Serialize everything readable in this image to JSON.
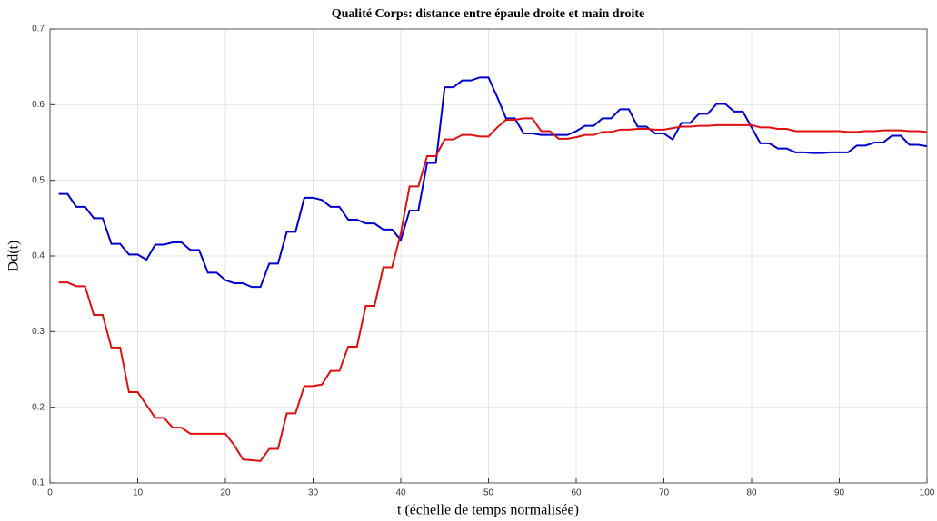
{
  "chart_data": {
    "type": "line",
    "title": "Qualité Corps: distance entre épaule droite et main droite",
    "xlabel": "t (échelle de temps normalisée)",
    "ylabel": "Dd(t)",
    "x": [
      1,
      2,
      3,
      4,
      5,
      6,
      7,
      8,
      9,
      10,
      11,
      12,
      13,
      14,
      15,
      16,
      17,
      18,
      19,
      20,
      21,
      22,
      23,
      24,
      25,
      26,
      27,
      28,
      29,
      30,
      31,
      32,
      33,
      34,
      35,
      36,
      37,
      38,
      39,
      40,
      41,
      42,
      43,
      44,
      45,
      46,
      47,
      48,
      49,
      50,
      51,
      52,
      53,
      54,
      55,
      56,
      57,
      58,
      59,
      60,
      61,
      62,
      63,
      64,
      65,
      66,
      67,
      68,
      69,
      70,
      71,
      72,
      73,
      74,
      75,
      76,
      77,
      78,
      79,
      80,
      81,
      82,
      83,
      84,
      85,
      86,
      87,
      88,
      89,
      90,
      91,
      92,
      93,
      94,
      95,
      96,
      97,
      98,
      99,
      100
    ],
    "series": [
      {
        "color": "#0000d0",
        "values": [
          0.482,
          0.482,
          0.465,
          0.465,
          0.45,
          0.45,
          0.416,
          0.416,
          0.402,
          0.402,
          0.395,
          0.415,
          0.415,
          0.418,
          0.418,
          0.408,
          0.408,
          0.378,
          0.378,
          0.368,
          0.364,
          0.364,
          0.359,
          0.359,
          0.39,
          0.39,
          0.432,
          0.432,
          0.477,
          0.477,
          0.474,
          0.465,
          0.465,
          0.448,
          0.448,
          0.443,
          0.443,
          0.435,
          0.435,
          0.421,
          0.46,
          0.46,
          0.523,
          0.523,
          0.623,
          0.623,
          0.632,
          0.632,
          0.636,
          0.636,
          0.61,
          0.582,
          0.582,
          0.562,
          0.562,
          0.56,
          0.56,
          0.56,
          0.56,
          0.565,
          0.572,
          0.572,
          0.582,
          0.582,
          0.594,
          0.594,
          0.571,
          0.571,
          0.562,
          0.562,
          0.554,
          0.576,
          0.576,
          0.588,
          0.588,
          0.601,
          0.601,
          0.591,
          0.591,
          0.57,
          0.549,
          0.549,
          0.542,
          0.542,
          0.537,
          0.537,
          0.536,
          0.536,
          0.537,
          0.537,
          0.537,
          0.546,
          0.546,
          0.55,
          0.55,
          0.559,
          0.559,
          0.547,
          0.547,
          0.545
        ]
      },
      {
        "color": "#e01010",
        "values": [
          0.365,
          0.365,
          0.36,
          0.36,
          0.322,
          0.322,
          0.279,
          0.279,
          0.22,
          0.22,
          0.203,
          0.186,
          0.186,
          0.173,
          0.173,
          0.165,
          0.165,
          0.165,
          0.165,
          0.165,
          0.15,
          0.131,
          0.13,
          0.129,
          0.145,
          0.145,
          0.192,
          0.192,
          0.228,
          0.228,
          0.23,
          0.248,
          0.248,
          0.28,
          0.28,
          0.334,
          0.334,
          0.385,
          0.385,
          0.43,
          0.492,
          0.492,
          0.532,
          0.532,
          0.554,
          0.554,
          0.56,
          0.56,
          0.558,
          0.558,
          0.57,
          0.58,
          0.58,
          0.582,
          0.582,
          0.565,
          0.565,
          0.555,
          0.555,
          0.557,
          0.56,
          0.56,
          0.564,
          0.564,
          0.567,
          0.567,
          0.568,
          0.568,
          0.567,
          0.567,
          0.569,
          0.571,
          0.571,
          0.572,
          0.572,
          0.573,
          0.573,
          0.573,
          0.573,
          0.573,
          0.57,
          0.57,
          0.568,
          0.568,
          0.565,
          0.565,
          0.565,
          0.565,
          0.565,
          0.565,
          0.564,
          0.564,
          0.565,
          0.565,
          0.566,
          0.566,
          0.566,
          0.565,
          0.565,
          0.564
        ]
      }
    ],
    "xlim": [
      0,
      100
    ],
    "xticks": [
      0,
      10,
      20,
      30,
      40,
      50,
      60,
      70,
      80,
      90,
      100
    ],
    "ylim": [
      0.1,
      0.7
    ],
    "yticks": [
      0.1,
      0.2,
      0.3,
      0.4,
      0.5,
      0.6,
      0.7
    ],
    "grid": true
  }
}
